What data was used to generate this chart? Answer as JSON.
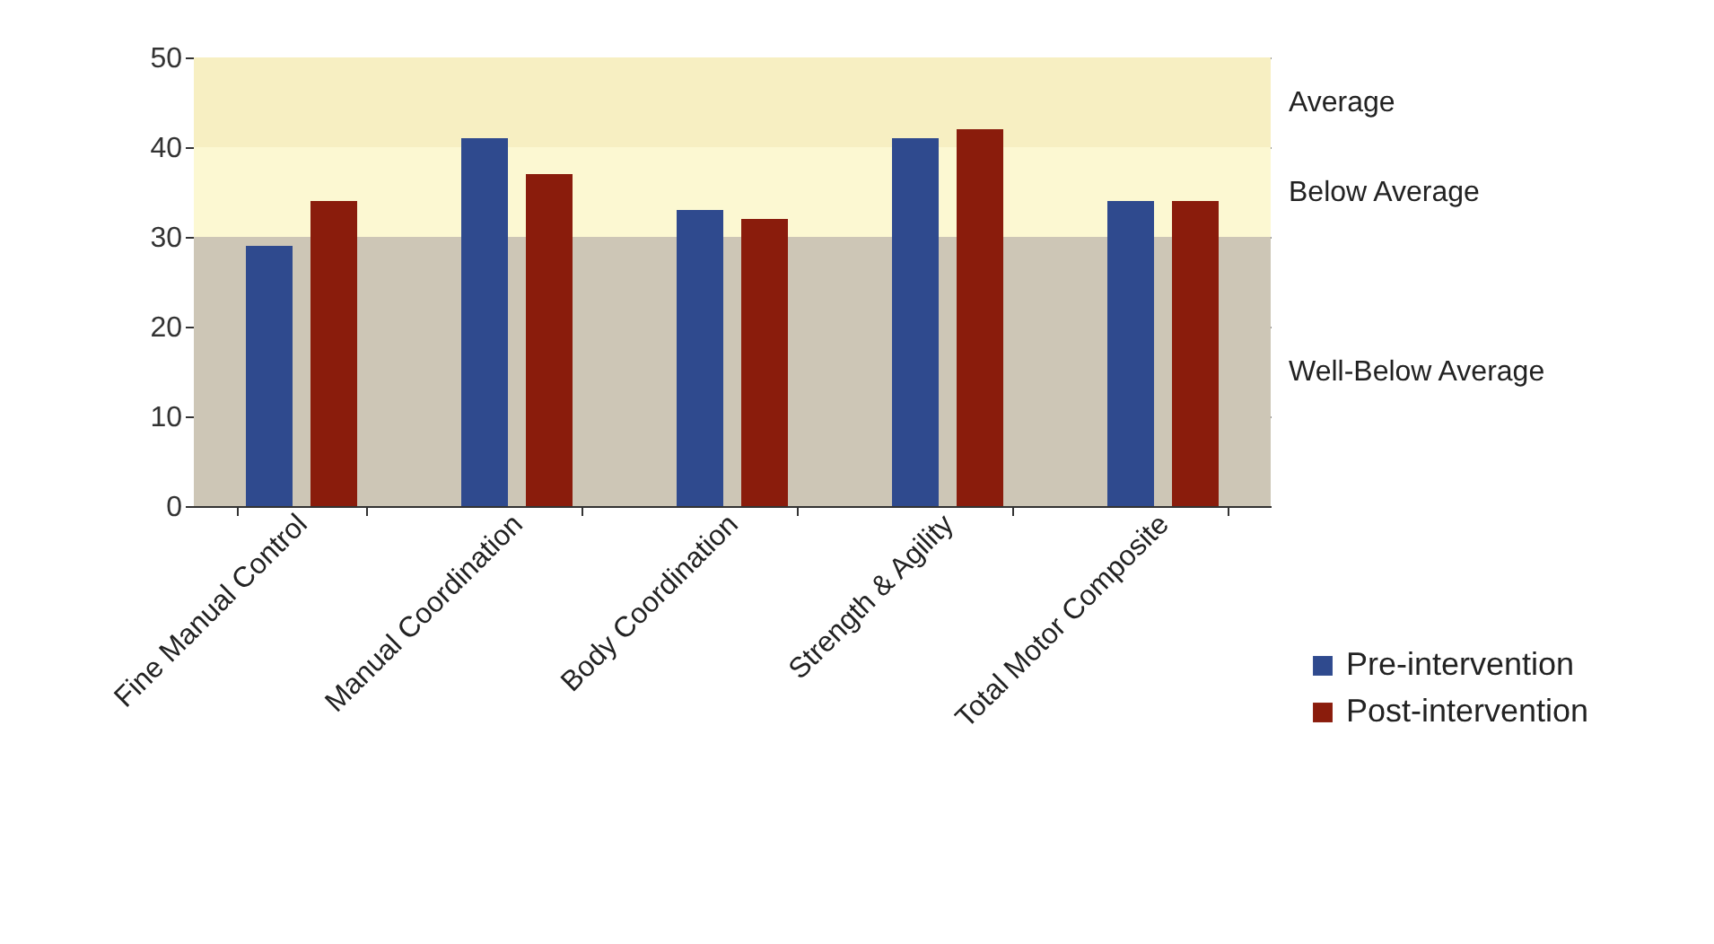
{
  "chart_data": {
    "type": "bar",
    "categories": [
      "Fine Manual Control",
      "Manual Coordination",
      "Body Coordination",
      "Strength & Agility",
      "Total Motor Composite"
    ],
    "series": [
      {
        "name": "Pre-intervention",
        "color": "#2f4a8e",
        "values": [
          29,
          41,
          33,
          41,
          34
        ]
      },
      {
        "name": "Post-intervention",
        "color": "#8a1c0c",
        "values": [
          34,
          37,
          32,
          42,
          34
        ]
      }
    ],
    "ylim": [
      0,
      50
    ],
    "yticks": [
      0,
      10,
      20,
      30,
      40,
      50
    ],
    "grid": "y",
    "legend": "bottom right",
    "bands": [
      {
        "axis": "y",
        "from": 40,
        "to": 50,
        "label": "Average",
        "color": "#f7efc2"
      },
      {
        "axis": "y",
        "from": 30,
        "to": 40,
        "label": "Below Average",
        "color": "#fcf8d2"
      },
      {
        "axis": "y",
        "from": 0,
        "to": 30,
        "label": "Well-Below Average",
        "color": "#cdc6b6"
      }
    ]
  }
}
